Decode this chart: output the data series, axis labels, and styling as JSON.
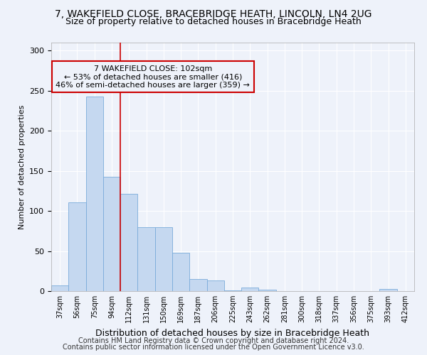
{
  "title1": "7, WAKEFIELD CLOSE, BRACEBRIDGE HEATH, LINCOLN, LN4 2UG",
  "title2": "Size of property relative to detached houses in Bracebridge Heath",
  "xlabel": "Distribution of detached houses by size in Bracebridge Heath",
  "ylabel": "Number of detached properties",
  "footnote1": "Contains HM Land Registry data © Crown copyright and database right 2024.",
  "footnote2": "Contains public sector information licensed under the Open Government Licence v3.0.",
  "annotation_line1": "7 WAKEFIELD CLOSE: 102sqm",
  "annotation_line2": "← 53% of detached houses are smaller (416)",
  "annotation_line3": "46% of semi-detached houses are larger (359) →",
  "bar_categories": [
    "37sqm",
    "56sqm",
    "75sqm",
    "94sqm",
    "112sqm",
    "131sqm",
    "150sqm",
    "169sqm",
    "187sqm",
    "206sqm",
    "225sqm",
    "243sqm",
    "262sqm",
    "281sqm",
    "300sqm",
    "318sqm",
    "337sqm",
    "356sqm",
    "375sqm",
    "393sqm",
    "412sqm"
  ],
  "bar_values": [
    7,
    111,
    243,
    143,
    121,
    80,
    80,
    48,
    15,
    13,
    1,
    4,
    2,
    0,
    0,
    0,
    0,
    0,
    0,
    3,
    0
  ],
  "bar_color": "#c5d8f0",
  "bar_edge_color": "#7aabda",
  "vline_x_index": 3.5,
  "vline_color": "#cc0000",
  "annotation_box_color": "#cc0000",
  "ylim": [
    0,
    310
  ],
  "yticks": [
    0,
    50,
    100,
    150,
    200,
    250,
    300
  ],
  "bg_color": "#eef2fa",
  "grid_color": "#ffffff",
  "title1_fontsize": 10,
  "title2_fontsize": 9,
  "xlabel_fontsize": 9,
  "ylabel_fontsize": 8,
  "footnote_fontsize": 7,
  "annot_fontsize": 8
}
